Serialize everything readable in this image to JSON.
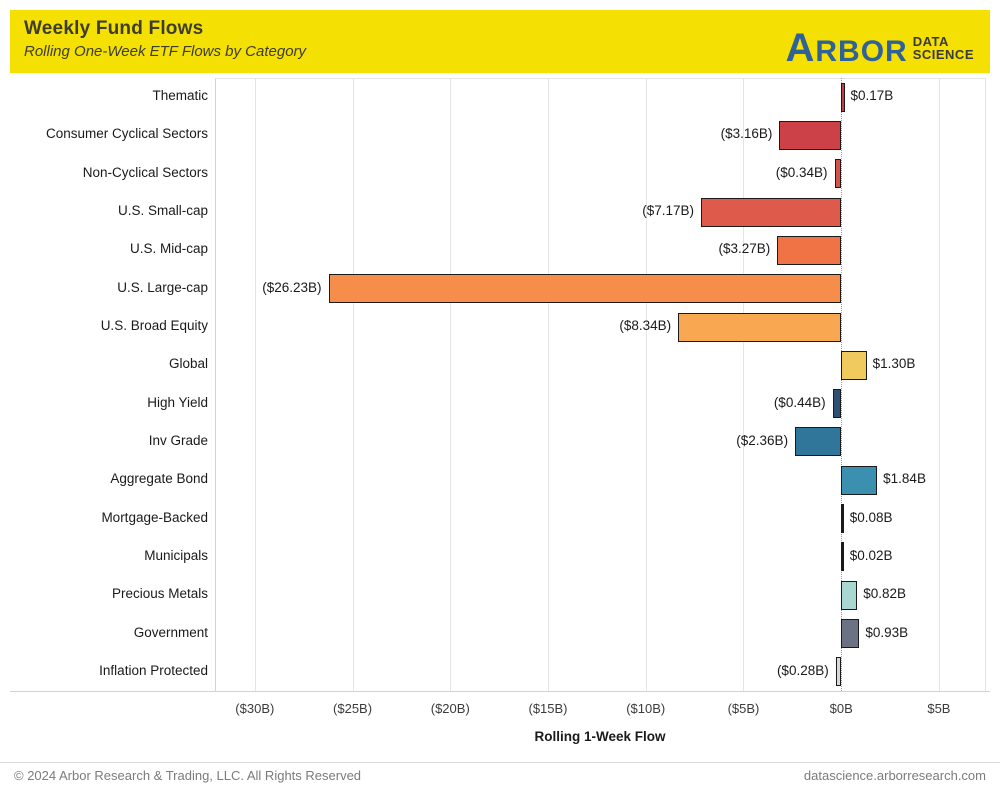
{
  "header": {
    "title": "Weekly Fund Flows",
    "subtitle": "Rolling One-Week ETF Flows by Category",
    "background_color": "#F5E003",
    "title_color": "#3D3D2A",
    "logo": {
      "brand": "ARBOR",
      "brand_first_letter": "A",
      "brand_rest": "RBOR",
      "brand_color": "#2F6296",
      "sub_top": "DATA",
      "sub_bottom": "SCIENCE",
      "sub_color": "#3A3A3A"
    }
  },
  "chart_data": {
    "type": "bar",
    "orientation": "horizontal",
    "title": "Weekly Fund Flows",
    "subtitle": "Rolling One-Week ETF Flows by Category",
    "xlabel": "Rolling 1-Week Flow",
    "ylabel": "",
    "xlim": [
      -32,
      7.4
    ],
    "grid": true,
    "zero_line": "dotted",
    "categories": [
      "Thematic",
      "Consumer Cyclical Sectors",
      "Non-Cyclical Sectors",
      "U.S. Small-cap",
      "U.S. Mid-cap",
      "U.S. Large-cap",
      "U.S. Broad Equity",
      "Global",
      "High Yield",
      "Inv Grade",
      "Aggregate Bond",
      "Mortgage-Backed",
      "Municipals",
      "Precious Metals",
      "Government",
      "Inflation Protected"
    ],
    "values": [
      0.17,
      -3.16,
      -0.34,
      -7.17,
      -3.27,
      -26.23,
      -8.34,
      1.3,
      -0.44,
      -2.36,
      1.84,
      0.08,
      0.02,
      0.82,
      0.93,
      -0.28
    ],
    "labels": [
      "$0.17B",
      "($3.16B)",
      "($0.34B)",
      "($7.17B)",
      "($3.27B)",
      "($26.23B)",
      "($8.34B)",
      "$1.30B",
      "($0.44B)",
      "($2.36B)",
      "$1.84B",
      "$0.08B",
      "$0.02B",
      "$0.82B",
      "$0.93B",
      "($0.28B)"
    ],
    "bar_colors": [
      "#BE4049",
      "#CC4147",
      "#D5524A",
      "#DE5B4B",
      "#F07346",
      "#F68D4B",
      "#F9A750",
      "#F0CA5E",
      "#2E4E74",
      "#30769B",
      "#3A90AE",
      "#1A1A1A",
      "#1A1A1A",
      "#A9D7D2",
      "#6A7284",
      "#D9D9D9"
    ],
    "x_ticks": [
      -30,
      -25,
      -20,
      -15,
      -10,
      -5,
      0,
      5
    ],
    "x_tick_labels": [
      "($30B)",
      "($25B)",
      "($20B)",
      "($15B)",
      "($10B)",
      "($5B)",
      "$0B",
      "$5B"
    ]
  },
  "footer": {
    "left": "© 2024 Arbor Research & Trading, LLC. All Rights Reserved",
    "right": "datascience.arborresearch.com"
  }
}
